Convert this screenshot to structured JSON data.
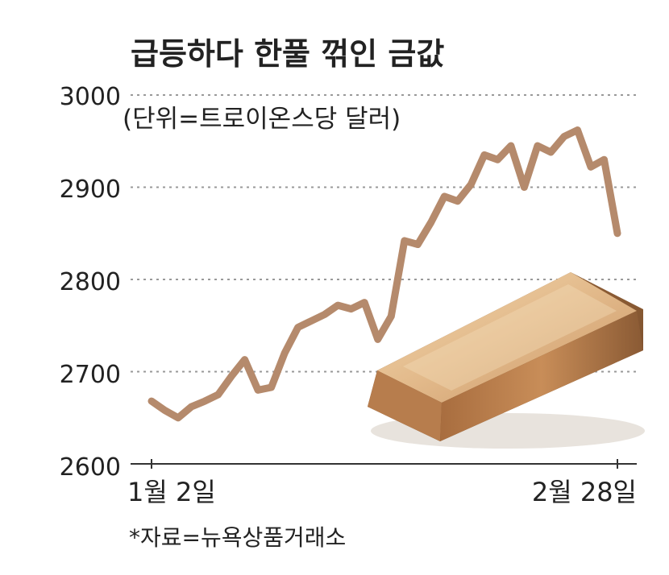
{
  "chart_data": {
    "type": "line",
    "title": "급등하다 한풀 꺾인 금값",
    "unit_label": "(단위=트로이온스당 달러)",
    "source": "*자료=뉴욕상품거래소",
    "y_ticks": [
      "3000",
      "2900",
      "2800",
      "2700",
      "2600"
    ],
    "x_tick_labels": [
      "1월 2일",
      "2월 28일"
    ],
    "ylim": [
      2600,
      3000
    ],
    "grid": true,
    "colors": {
      "line": "#b58a6c",
      "grid": "#999999",
      "axis": "#333333"
    },
    "series": [
      {
        "values": [
          2668,
          2658,
          2650,
          2662,
          2668,
          2675,
          2695,
          2713,
          2680,
          2683,
          2720,
          2748,
          2755,
          2762,
          2772,
          2768,
          2775,
          2735,
          2760,
          2842,
          2838,
          2862,
          2890,
          2885,
          2903,
          2935,
          2930,
          2945,
          2900,
          2945,
          2938,
          2955,
          2962,
          2922,
          2930,
          2850
        ]
      }
    ]
  }
}
